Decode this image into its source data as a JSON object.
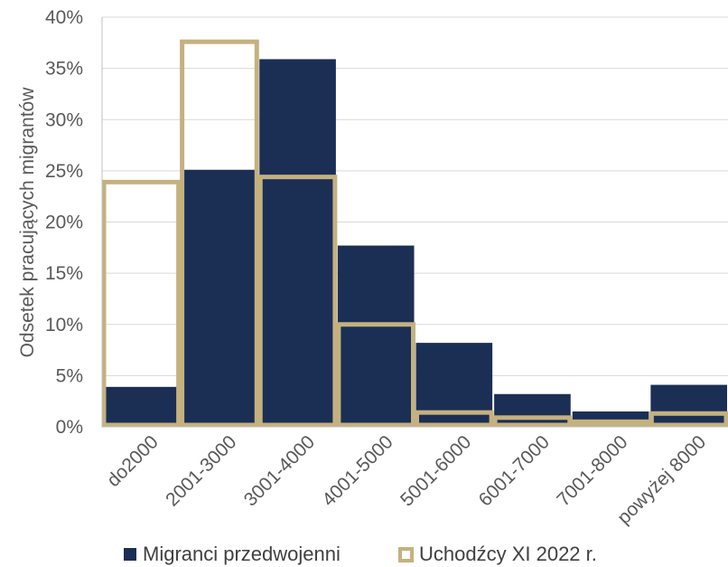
{
  "chart_data": {
    "type": "bar",
    "ylabel": "Odsetek pracujących migrantów",
    "xlabel": "",
    "categories": [
      "do2000",
      "2001-3000",
      "3001-4000",
      "4001-5000",
      "5001-6000",
      "6001-7000",
      "7001-8000",
      "powyżej 8000"
    ],
    "ylim": [
      0,
      40
    ],
    "yticks": [
      "0%",
      "5%",
      "10%",
      "15%",
      "20%",
      "25%",
      "30%",
      "35%",
      "40%"
    ],
    "grid": true,
    "legend_position": "bottom",
    "series": [
      {
        "name": "Migranci przedwojenni",
        "style": "filled",
        "color": "#1b2f55",
        "values": [
          3.9,
          25.1,
          35.9,
          17.7,
          8.2,
          3.2,
          1.5,
          4.1
        ]
      },
      {
        "name": "Uchodźcy XI 2022 r.",
        "style": "outline",
        "color": "#c4b17f",
        "values": [
          23.9,
          37.6,
          24.4,
          10.0,
          1.4,
          0.9,
          0.5,
          1.3
        ]
      }
    ]
  }
}
